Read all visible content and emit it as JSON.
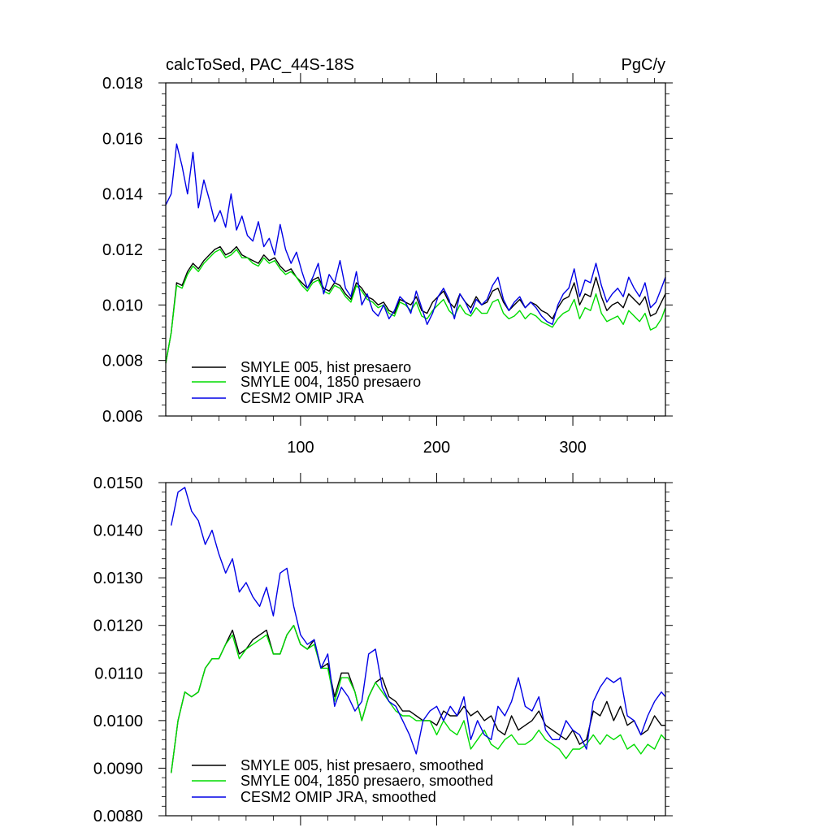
{
  "chart_data": [
    {
      "type": "line",
      "title_left": "calcToSed, PAC_44S-18S",
      "title_right": "PgC/y",
      "xlim": [
        1,
        368
      ],
      "ylim": [
        0.006,
        0.018
      ],
      "xticks": [
        100,
        200,
        300
      ],
      "xtick_labels": [
        "100",
        "200",
        "300"
      ],
      "yticks": [
        0.006,
        0.008,
        0.01,
        0.012,
        0.014,
        0.016,
        0.018
      ],
      "ytick_labels": [
        "0.006",
        "0.008",
        "0.010",
        "0.012",
        "0.014",
        "0.016",
        "0.018"
      ],
      "legend": [
        "SMYLE 005, hist presaero",
        "SMYLE 004, 1850 presaero",
        "CESM2 OMIP JRA"
      ],
      "series": [
        {
          "name": "SMYLE 005, hist presaero",
          "color": "#000000",
          "start": 1,
          "step": 4,
          "values": [
            0.0079,
            0.009,
            0.0108,
            0.0107,
            0.0112,
            0.0115,
            0.0113,
            0.0116,
            0.0118,
            0.012,
            0.0121,
            0.0118,
            0.0119,
            0.0121,
            0.0118,
            0.0117,
            0.0116,
            0.0115,
            0.0118,
            0.0116,
            0.0117,
            0.0114,
            0.0112,
            0.0113,
            0.011,
            0.0108,
            0.0106,
            0.0109,
            0.011,
            0.0106,
            0.0105,
            0.0108,
            0.0107,
            0.0104,
            0.0102,
            0.0108,
            0.0106,
            0.0103,
            0.0102,
            0.01,
            0.0101,
            0.0098,
            0.0097,
            0.0102,
            0.0101,
            0.01,
            0.0103,
            0.0098,
            0.0097,
            0.0101,
            0.0103,
            0.0105,
            0.0101,
            0.0099,
            0.0104,
            0.0101,
            0.0099,
            0.0103,
            0.01,
            0.0101,
            0.0105,
            0.0106,
            0.0101,
            0.0098,
            0.01,
            0.0102,
            0.0099,
            0.0101,
            0.01,
            0.0098,
            0.0097,
            0.0095,
            0.0099,
            0.0102,
            0.0103,
            0.0108,
            0.01,
            0.0104,
            0.0103,
            0.011,
            0.0103,
            0.0098,
            0.01,
            0.0101,
            0.0099,
            0.0104,
            0.0102,
            0.01,
            0.0103,
            0.0096,
            0.0097,
            0.0101,
            0.0104
          ]
        },
        {
          "name": "SMYLE 004, 1850 presaero",
          "color": "#00dc00",
          "start": 1,
          "step": 4,
          "values": [
            0.0079,
            0.009,
            0.0107,
            0.0106,
            0.0111,
            0.0114,
            0.0112,
            0.0115,
            0.0117,
            0.0119,
            0.012,
            0.0117,
            0.0118,
            0.012,
            0.0117,
            0.0117,
            0.0115,
            0.0114,
            0.0117,
            0.0115,
            0.0116,
            0.0113,
            0.0111,
            0.0112,
            0.011,
            0.0107,
            0.0105,
            0.0108,
            0.0109,
            0.0105,
            0.0104,
            0.0107,
            0.0106,
            0.0103,
            0.0101,
            0.0107,
            0.0105,
            0.0102,
            0.0101,
            0.0099,
            0.01,
            0.0097,
            0.0096,
            0.0101,
            0.01,
            0.0098,
            0.0101,
            0.0096,
            0.0095,
            0.0098,
            0.01,
            0.0102,
            0.0098,
            0.0096,
            0.01,
            0.0097,
            0.0096,
            0.0099,
            0.0097,
            0.0097,
            0.0101,
            0.0102,
            0.0097,
            0.0095,
            0.0096,
            0.0098,
            0.0095,
            0.0097,
            0.0096,
            0.0094,
            0.0093,
            0.0092,
            0.0095,
            0.0097,
            0.0098,
            0.0102,
            0.0095,
            0.0099,
            0.0098,
            0.0104,
            0.0097,
            0.0094,
            0.0095,
            0.0096,
            0.0093,
            0.0098,
            0.0096,
            0.0094,
            0.0097,
            0.0091,
            0.0092,
            0.0095,
            0.0099
          ]
        },
        {
          "name": "CESM2 OMIP JRA",
          "color": "#0000e6",
          "start": 1,
          "step": 4,
          "values": [
            0.0136,
            0.014,
            0.0158,
            0.015,
            0.014,
            0.0155,
            0.0135,
            0.0145,
            0.0138,
            0.013,
            0.0134,
            0.0128,
            0.014,
            0.0127,
            0.0132,
            0.0125,
            0.0123,
            0.013,
            0.0121,
            0.0124,
            0.0118,
            0.0129,
            0.012,
            0.0115,
            0.0119,
            0.0112,
            0.0106,
            0.011,
            0.0115,
            0.0104,
            0.0111,
            0.0108,
            0.0116,
            0.0106,
            0.0103,
            0.0112,
            0.01,
            0.0104,
            0.0098,
            0.0096,
            0.01,
            0.0095,
            0.0098,
            0.0103,
            0.0101,
            0.0097,
            0.0105,
            0.0099,
            0.0093,
            0.0097,
            0.0103,
            0.0106,
            0.0102,
            0.0095,
            0.0104,
            0.0101,
            0.0097,
            0.0102,
            0.01,
            0.0102,
            0.0107,
            0.011,
            0.0102,
            0.0098,
            0.0101,
            0.0103,
            0.0099,
            0.0101,
            0.0099,
            0.0096,
            0.0094,
            0.0093,
            0.01,
            0.0104,
            0.0106,
            0.0113,
            0.0103,
            0.0109,
            0.0108,
            0.0115,
            0.0107,
            0.0101,
            0.0104,
            0.0106,
            0.0103,
            0.011,
            0.0106,
            0.0103,
            0.0108,
            0.0099,
            0.0101,
            0.0106,
            0.011
          ]
        }
      ]
    },
    {
      "type": "line",
      "xlim": [
        1,
        368
      ],
      "ylim": [
        0.008,
        0.015
      ],
      "xticks": [
        100,
        200,
        300
      ],
      "yticks": [
        0.008,
        0.009,
        0.01,
        0.011,
        0.012,
        0.013,
        0.014,
        0.015
      ],
      "ytick_labels": [
        "0.0080",
        "0.0090",
        "0.0100",
        "0.0110",
        "0.0120",
        "0.0130",
        "0.0140",
        "0.0150"
      ],
      "legend": [
        "SMYLE 005, hist presaero, smoothed",
        "SMYLE 004, 1850 presaero, smoothed",
        "CESM2 OMIP JRA, smoothed"
      ],
      "series": [
        {
          "name": "SMYLE 005, hist presaero, smoothed",
          "color": "#000000",
          "start": 5,
          "step": 5,
          "values": [
            0.0089,
            0.01,
            0.0106,
            0.0105,
            0.0106,
            0.0111,
            0.0113,
            0.0113,
            0.0116,
            0.0119,
            0.0114,
            0.0115,
            0.0117,
            0.0118,
            0.0119,
            0.0114,
            0.0114,
            0.0118,
            0.012,
            0.0116,
            0.0115,
            0.0117,
            0.0111,
            0.0112,
            0.0105,
            0.011,
            0.011,
            0.0106,
            0.01,
            0.0105,
            0.0108,
            0.0109,
            0.0105,
            0.0104,
            0.0102,
            0.0102,
            0.0101,
            0.01,
            0.01,
            0.0099,
            0.0102,
            0.0101,
            0.0101,
            0.0103,
            0.0101,
            0.0102,
            0.01,
            0.0101,
            0.0098,
            0.0097,
            0.0101,
            0.0098,
            0.0099,
            0.01,
            0.0102,
            0.0099,
            0.0098,
            0.0097,
            0.0096,
            0.0098,
            0.0095,
            0.0096,
            0.0102,
            0.0101,
            0.0104,
            0.01,
            0.0103,
            0.0099,
            0.01,
            0.0097,
            0.0098,
            0.0101,
            0.0099,
            0.0099
          ]
        },
        {
          "name": "SMYLE 004, 1850 presaero, smoothed",
          "color": "#00dc00",
          "start": 5,
          "step": 5,
          "values": [
            0.0089,
            0.01,
            0.0106,
            0.0105,
            0.0106,
            0.0111,
            0.0113,
            0.0113,
            0.0116,
            0.0118,
            0.0113,
            0.0115,
            0.0116,
            0.0117,
            0.0118,
            0.0114,
            0.0114,
            0.0118,
            0.012,
            0.0116,
            0.0115,
            0.0116,
            0.0111,
            0.0111,
            0.0104,
            0.0109,
            0.0109,
            0.0106,
            0.01,
            0.0105,
            0.0108,
            0.0106,
            0.0104,
            0.0102,
            0.0101,
            0.0101,
            0.01,
            0.01,
            0.01,
            0.0097,
            0.01,
            0.0098,
            0.0097,
            0.01,
            0.0094,
            0.0096,
            0.0098,
            0.0095,
            0.0094,
            0.0096,
            0.0097,
            0.0095,
            0.0095,
            0.0096,
            0.0098,
            0.0096,
            0.0095,
            0.0094,
            0.0092,
            0.0094,
            0.0094,
            0.0095,
            0.0097,
            0.0095,
            0.0097,
            0.0096,
            0.0097,
            0.0094,
            0.0095,
            0.0093,
            0.0095,
            0.0094,
            0.0097,
            0.0096
          ]
        },
        {
          "name": "CESM2 OMIP JRA, smoothed",
          "color": "#0000e6",
          "start": 5,
          "step": 5,
          "values": [
            0.0141,
            0.0148,
            0.0149,
            0.0144,
            0.0142,
            0.0137,
            0.014,
            0.0135,
            0.0131,
            0.0134,
            0.0127,
            0.0129,
            0.0126,
            0.0124,
            0.0128,
            0.0122,
            0.0131,
            0.0132,
            0.0124,
            0.0118,
            0.0116,
            0.0117,
            0.0111,
            0.0114,
            0.0103,
            0.0107,
            0.0105,
            0.0102,
            0.0104,
            0.0114,
            0.0115,
            0.0107,
            0.0104,
            0.0103,
            0.01,
            0.0097,
            0.0093,
            0.01,
            0.0102,
            0.0103,
            0.01,
            0.0103,
            0.0101,
            0.0105,
            0.0096,
            0.01,
            0.0097,
            0.0096,
            0.0103,
            0.0101,
            0.0104,
            0.0109,
            0.0103,
            0.0102,
            0.0105,
            0.0098,
            0.0096,
            0.0096,
            0.01,
            0.0098,
            0.0097,
            0.0094,
            0.0104,
            0.0107,
            0.0109,
            0.0108,
            0.0109,
            0.0101,
            0.01,
            0.0097,
            0.0101,
            0.0104,
            0.0106,
            0.0105
          ]
        }
      ]
    }
  ]
}
